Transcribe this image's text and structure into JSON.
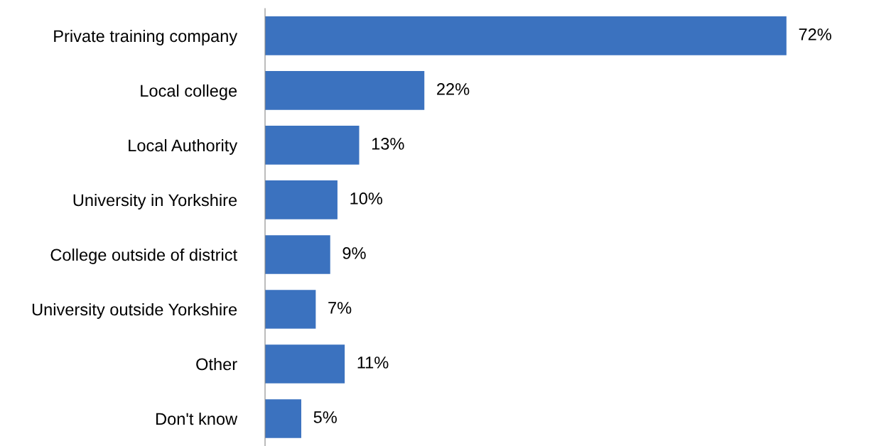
{
  "chart_data": {
    "type": "bar",
    "orientation": "horizontal",
    "categories": [
      "Private training company",
      "Local college",
      "Local Authority",
      "University in Yorkshire",
      "College outside of district",
      "University outside Yorkshire",
      "Other",
      "Don't know"
    ],
    "values": [
      72,
      22,
      13,
      10,
      9,
      7,
      11,
      5
    ],
    "color": "#3b72bf",
    "value_labels": [
      "72%",
      "22%",
      "13%",
      "10%",
      "9%",
      "7%",
      "11%",
      "5%"
    ],
    "grid": false,
    "legend": false
  }
}
